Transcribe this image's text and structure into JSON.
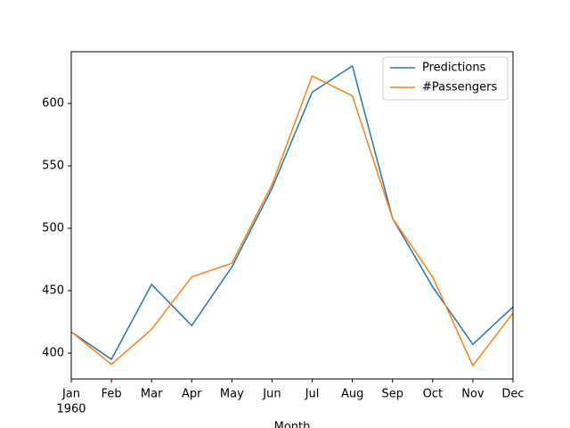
{
  "chart_data": {
    "type": "line",
    "categories": [
      "Jan",
      "Feb",
      "Mar",
      "Apr",
      "May",
      "Jun",
      "Jul",
      "Aug",
      "Sep",
      "Oct",
      "Nov",
      "Dec"
    ],
    "x_sublabel": "1960",
    "xlabel": "Month",
    "series": [
      {
        "name": "Predictions",
        "color": "#1f77b4",
        "values": [
          417,
          395,
          455,
          422,
          469,
          532,
          609,
          630,
          508,
          453,
          407,
          437
        ]
      },
      {
        "name": "#Passengers",
        "color": "#ff7f0e",
        "values": [
          417,
          391,
          419,
          461,
          472,
          535,
          622,
          606,
          508,
          461,
          390,
          432
        ]
      }
    ],
    "ylim": [
      379.3,
      641.4
    ],
    "yticks": [
      400,
      450,
      500,
      550,
      600
    ],
    "legend": "upper right"
  }
}
